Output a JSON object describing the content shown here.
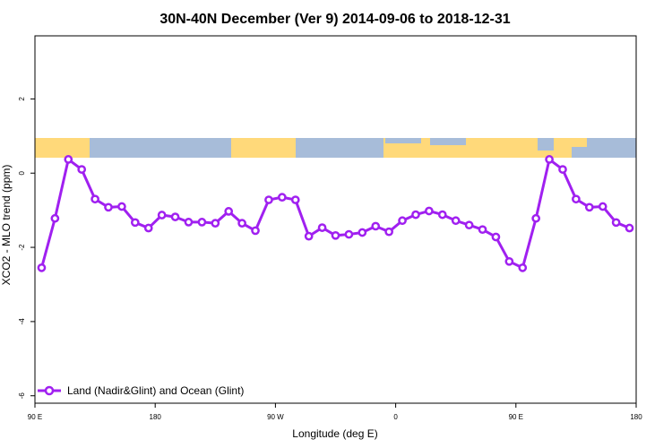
{
  "chart_data": {
    "type": "line",
    "title": "30N-40N December (Ver 9)   2014-09-06 to 2018-12-31",
    "xlabel": "Longitude (deg E)",
    "ylabel": "XCO2 - MLO trend (ppm)",
    "xlim": [
      90,
      540
    ],
    "ylim": [
      -6.2,
      3.7
    ],
    "x_ticks": [
      {
        "value": 90,
        "label": "90 E"
      },
      {
        "value": 180,
        "label": "180"
      },
      {
        "value": 270,
        "label": "90 W"
      },
      {
        "value": 360,
        "label": "0"
      },
      {
        "value": 450,
        "label": "90 E"
      },
      {
        "value": 540,
        "label": "180"
      }
    ],
    "y_ticks": [
      {
        "value": -6,
        "label": "-6"
      },
      {
        "value": -4,
        "label": "-4"
      },
      {
        "value": -2,
        "label": "-2"
      },
      {
        "value": 0,
        "label": "0"
      },
      {
        "value": 2,
        "label": "2"
      }
    ],
    "grid": false,
    "legend_position": "bottom-left",
    "series": [
      {
        "name": "Land (Nadir&Glint) and Ocean (Glint)",
        "color": "#a020f0",
        "x": [
          95,
          105,
          115,
          125,
          135,
          145,
          155,
          165,
          175,
          185,
          195,
          205,
          215,
          225,
          235,
          245,
          255,
          265,
          275,
          285,
          295,
          305,
          315,
          325,
          335,
          345,
          355,
          365,
          375,
          385,
          395,
          405,
          415,
          425,
          435,
          445,
          455,
          465,
          475,
          485,
          495,
          505,
          515,
          525,
          535
        ],
        "y": [
          -2.55,
          -1.22,
          0.37,
          0.1,
          -0.7,
          -0.92,
          -0.9,
          -1.33,
          -1.48,
          -1.13,
          -1.18,
          -1.32,
          -1.32,
          -1.35,
          -1.03,
          -1.35,
          -1.55,
          -0.72,
          -0.65,
          -0.72,
          -1.7,
          -1.47,
          -1.68,
          -1.65,
          -1.6,
          -1.43,
          -1.58,
          -1.28,
          -1.12,
          -1.02,
          -1.12,
          -1.28,
          -1.4,
          -1.52,
          -1.72,
          -2.38,
          -2.55,
          -1.22,
          0.37,
          0.1,
          -0.7,
          -0.92,
          -0.9,
          -1.33,
          -1.48
        ]
      }
    ]
  },
  "colors": {
    "land": "#ffd97a",
    "ocean": "#a7bcd9"
  }
}
